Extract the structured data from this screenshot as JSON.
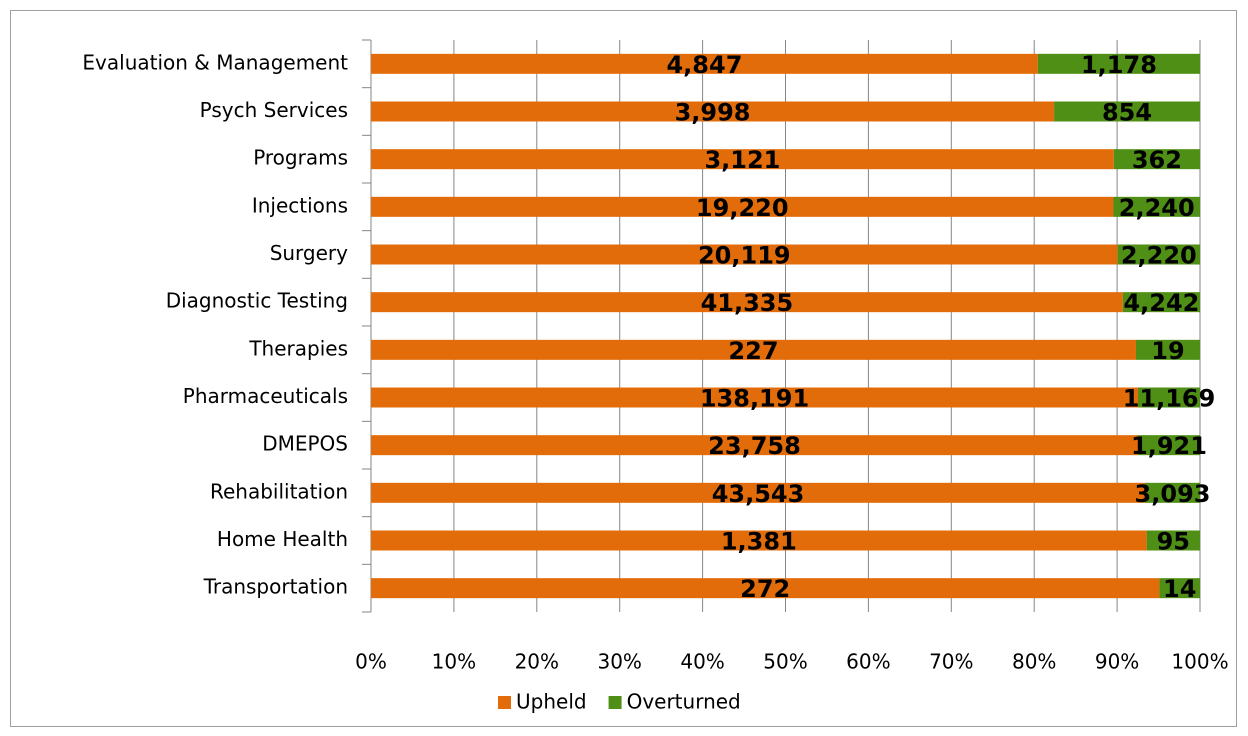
{
  "chart_data": {
    "type": "bar",
    "orientation": "horizontal",
    "stacking": "percent",
    "categories": [
      "Evaluation & Management",
      "Psych Services",
      "Programs",
      "Injections",
      "Surgery",
      "Diagnostic Testing",
      "Therapies",
      "Pharmaceuticals",
      "DMEPOS",
      "Rehabilitation",
      "Home Health",
      "Transportation"
    ],
    "series": [
      {
        "name": "Upheld",
        "color": "#e36c0a",
        "values": [
          4847,
          3998,
          3121,
          19220,
          20119,
          41335,
          227,
          138191,
          23758,
          43543,
          1381,
          272
        ],
        "value_labels": [
          "4,847",
          "3,998",
          "3,121",
          "19,220",
          "20,119",
          "41,335",
          "227",
          "138,191",
          "23,758",
          "43,543",
          "1,381",
          "272"
        ]
      },
      {
        "name": "Overturned",
        "color": "#4f8f16",
        "values": [
          1178,
          854,
          362,
          2240,
          2220,
          4242,
          19,
          11169,
          1921,
          3093,
          95,
          14
        ],
        "value_labels": [
          "1,178",
          "854",
          "362",
          "2,240",
          "2,220",
          "4,242",
          "19",
          "11,169",
          "1,921",
          "3,093",
          "95",
          "14"
        ]
      }
    ],
    "xlim": [
      0,
      100
    ],
    "xticks": [
      {
        "value": 0,
        "label": "0%"
      },
      {
        "value": 10,
        "label": "10%"
      },
      {
        "value": 20,
        "label": "20%"
      },
      {
        "value": 30,
        "label": "30%"
      },
      {
        "value": 40,
        "label": "40%"
      },
      {
        "value": 50,
        "label": "50%"
      },
      {
        "value": 60,
        "label": "60%"
      },
      {
        "value": 70,
        "label": "70%"
      },
      {
        "value": 80,
        "label": "80%"
      },
      {
        "value": 90,
        "label": "90%"
      },
      {
        "value": 100,
        "label": "100%"
      }
    ],
    "grid": true,
    "legend": "bottom"
  }
}
